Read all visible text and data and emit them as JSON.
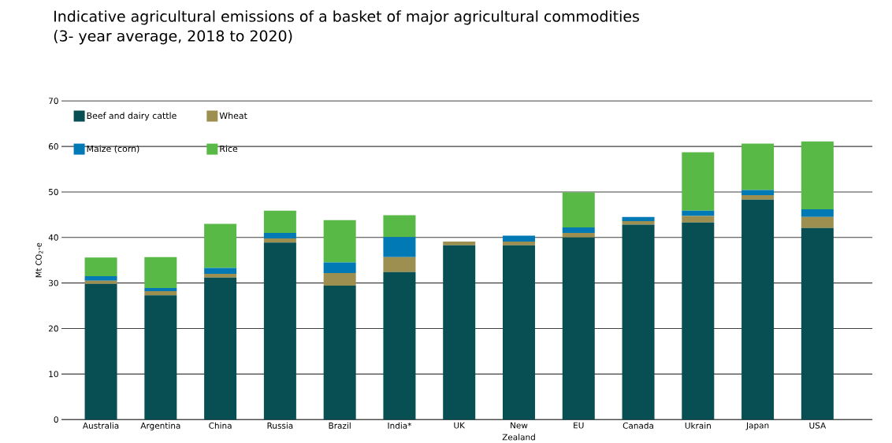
{
  "chart_data": {
    "type": "bar",
    "stacked": true,
    "title": "Indicative agricultural emissions of a basket of major agricultural commodities",
    "subtitle": "(3- year average, 2018 to 2020)",
    "ylabel": "Mt CO$_{2}$-e",
    "categories": [
      "Australia",
      "Argentina",
      "China",
      "Russia",
      "Brazil",
      "India*",
      "UK",
      "New Zealand",
      "EU",
      "Canada",
      "Ukrain",
      "Japan",
      "USA"
    ],
    "series": [
      {
        "name": "Beef and dairy cattle",
        "color": "#074f53",
        "values": [
          29.8,
          27.3,
          31.2,
          38.9,
          29.4,
          32.4,
          38.3,
          38.3,
          40.0,
          42.8,
          43.3,
          48.3,
          42.1
        ]
      },
      {
        "name": "Wheat",
        "color": "#9c8f4f",
        "values": [
          0.7,
          0.9,
          0.8,
          0.9,
          2.8,
          3.3,
          0.8,
          0.8,
          1.0,
          0.8,
          1.4,
          1.0,
          2.4
        ]
      },
      {
        "name": "Maize (corn)",
        "color": "#0079b5",
        "values": [
          1.0,
          0.7,
          1.3,
          1.2,
          2.3,
          4.4,
          0,
          1.3,
          1.2,
          0.9,
          1.2,
          1.1,
          1.7
        ]
      },
      {
        "name": "Rice",
        "color": "#58b947",
        "values": [
          4.1,
          6.8,
          9.7,
          4.9,
          9.3,
          4.8,
          0,
          0,
          7.7,
          0,
          12.8,
          10.2,
          14.9
        ]
      }
    ],
    "ylim": [
      0,
      70
    ],
    "yticks": [
      0,
      10,
      20,
      30,
      40,
      50,
      60,
      70
    ],
    "grid": "y",
    "legend": "top left"
  }
}
